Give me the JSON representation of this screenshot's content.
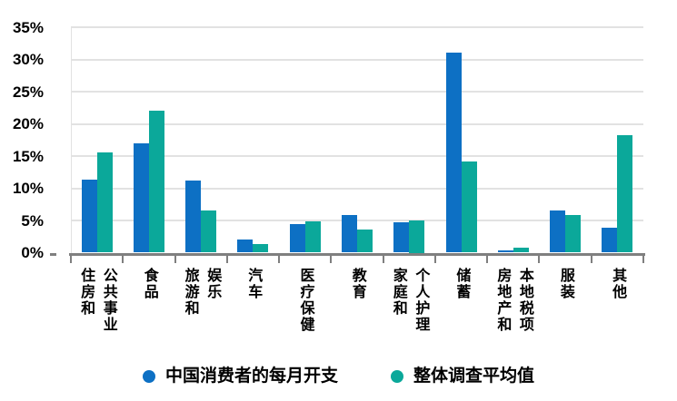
{
  "chart_data": {
    "type": "bar",
    "title": "",
    "xlabel": "",
    "ylabel": "",
    "ylim": [
      0,
      35
    ],
    "grid": true,
    "legend_position": "bottom",
    "categories": [
      "住房和公共事业",
      "食品",
      "旅游和娱乐",
      "汽车",
      "医疗保健",
      "教育",
      "家庭和个人护理",
      "储蓄",
      "房地产和本地税项",
      "服装",
      "其他"
    ],
    "category_label_columns": [
      [
        "住房和",
        "公共事业"
      ],
      [
        "食品"
      ],
      [
        "旅游和",
        "娱乐"
      ],
      [
        "汽车"
      ],
      [
        "医疗保健"
      ],
      [
        "教育"
      ],
      [
        "家庭和",
        "个人护理"
      ],
      [
        "储蓄"
      ],
      [
        "房地产和",
        "本地税项"
      ],
      [
        "服装"
      ],
      [
        "其他"
      ]
    ],
    "yticks": [
      {
        "value": 0,
        "label": "0%"
      },
      {
        "value": 5,
        "label": "5%"
      },
      {
        "value": 10,
        "label": "10%"
      },
      {
        "value": 15,
        "label": "15%"
      },
      {
        "value": 20,
        "label": "20%"
      },
      {
        "value": 25,
        "label": "25%"
      },
      {
        "value": 30,
        "label": "30%"
      },
      {
        "value": 35,
        "label": "35%"
      }
    ],
    "series": [
      {
        "key": "china-consumer-monthly-spend",
        "name": "中国消费者的每月开支",
        "color": "#0d70c4",
        "values": [
          11.4,
          17.0,
          11.2,
          2.1,
          4.4,
          5.8,
          4.7,
          31.1,
          0.4,
          6.6,
          3.9
        ]
      },
      {
        "key": "overall-survey-average",
        "name": "整体调查平均值",
        "color": "#0ba89a",
        "values": [
          15.6,
          22.1,
          6.6,
          1.4,
          4.9,
          3.6,
          5.0,
          14.2,
          0.8,
          5.8,
          18.3
        ]
      }
    ]
  },
  "colors": {
    "background": "#ffffff",
    "gridline": "#e2e2e2",
    "axis": "#7f7f7f",
    "text": "#000000"
  }
}
